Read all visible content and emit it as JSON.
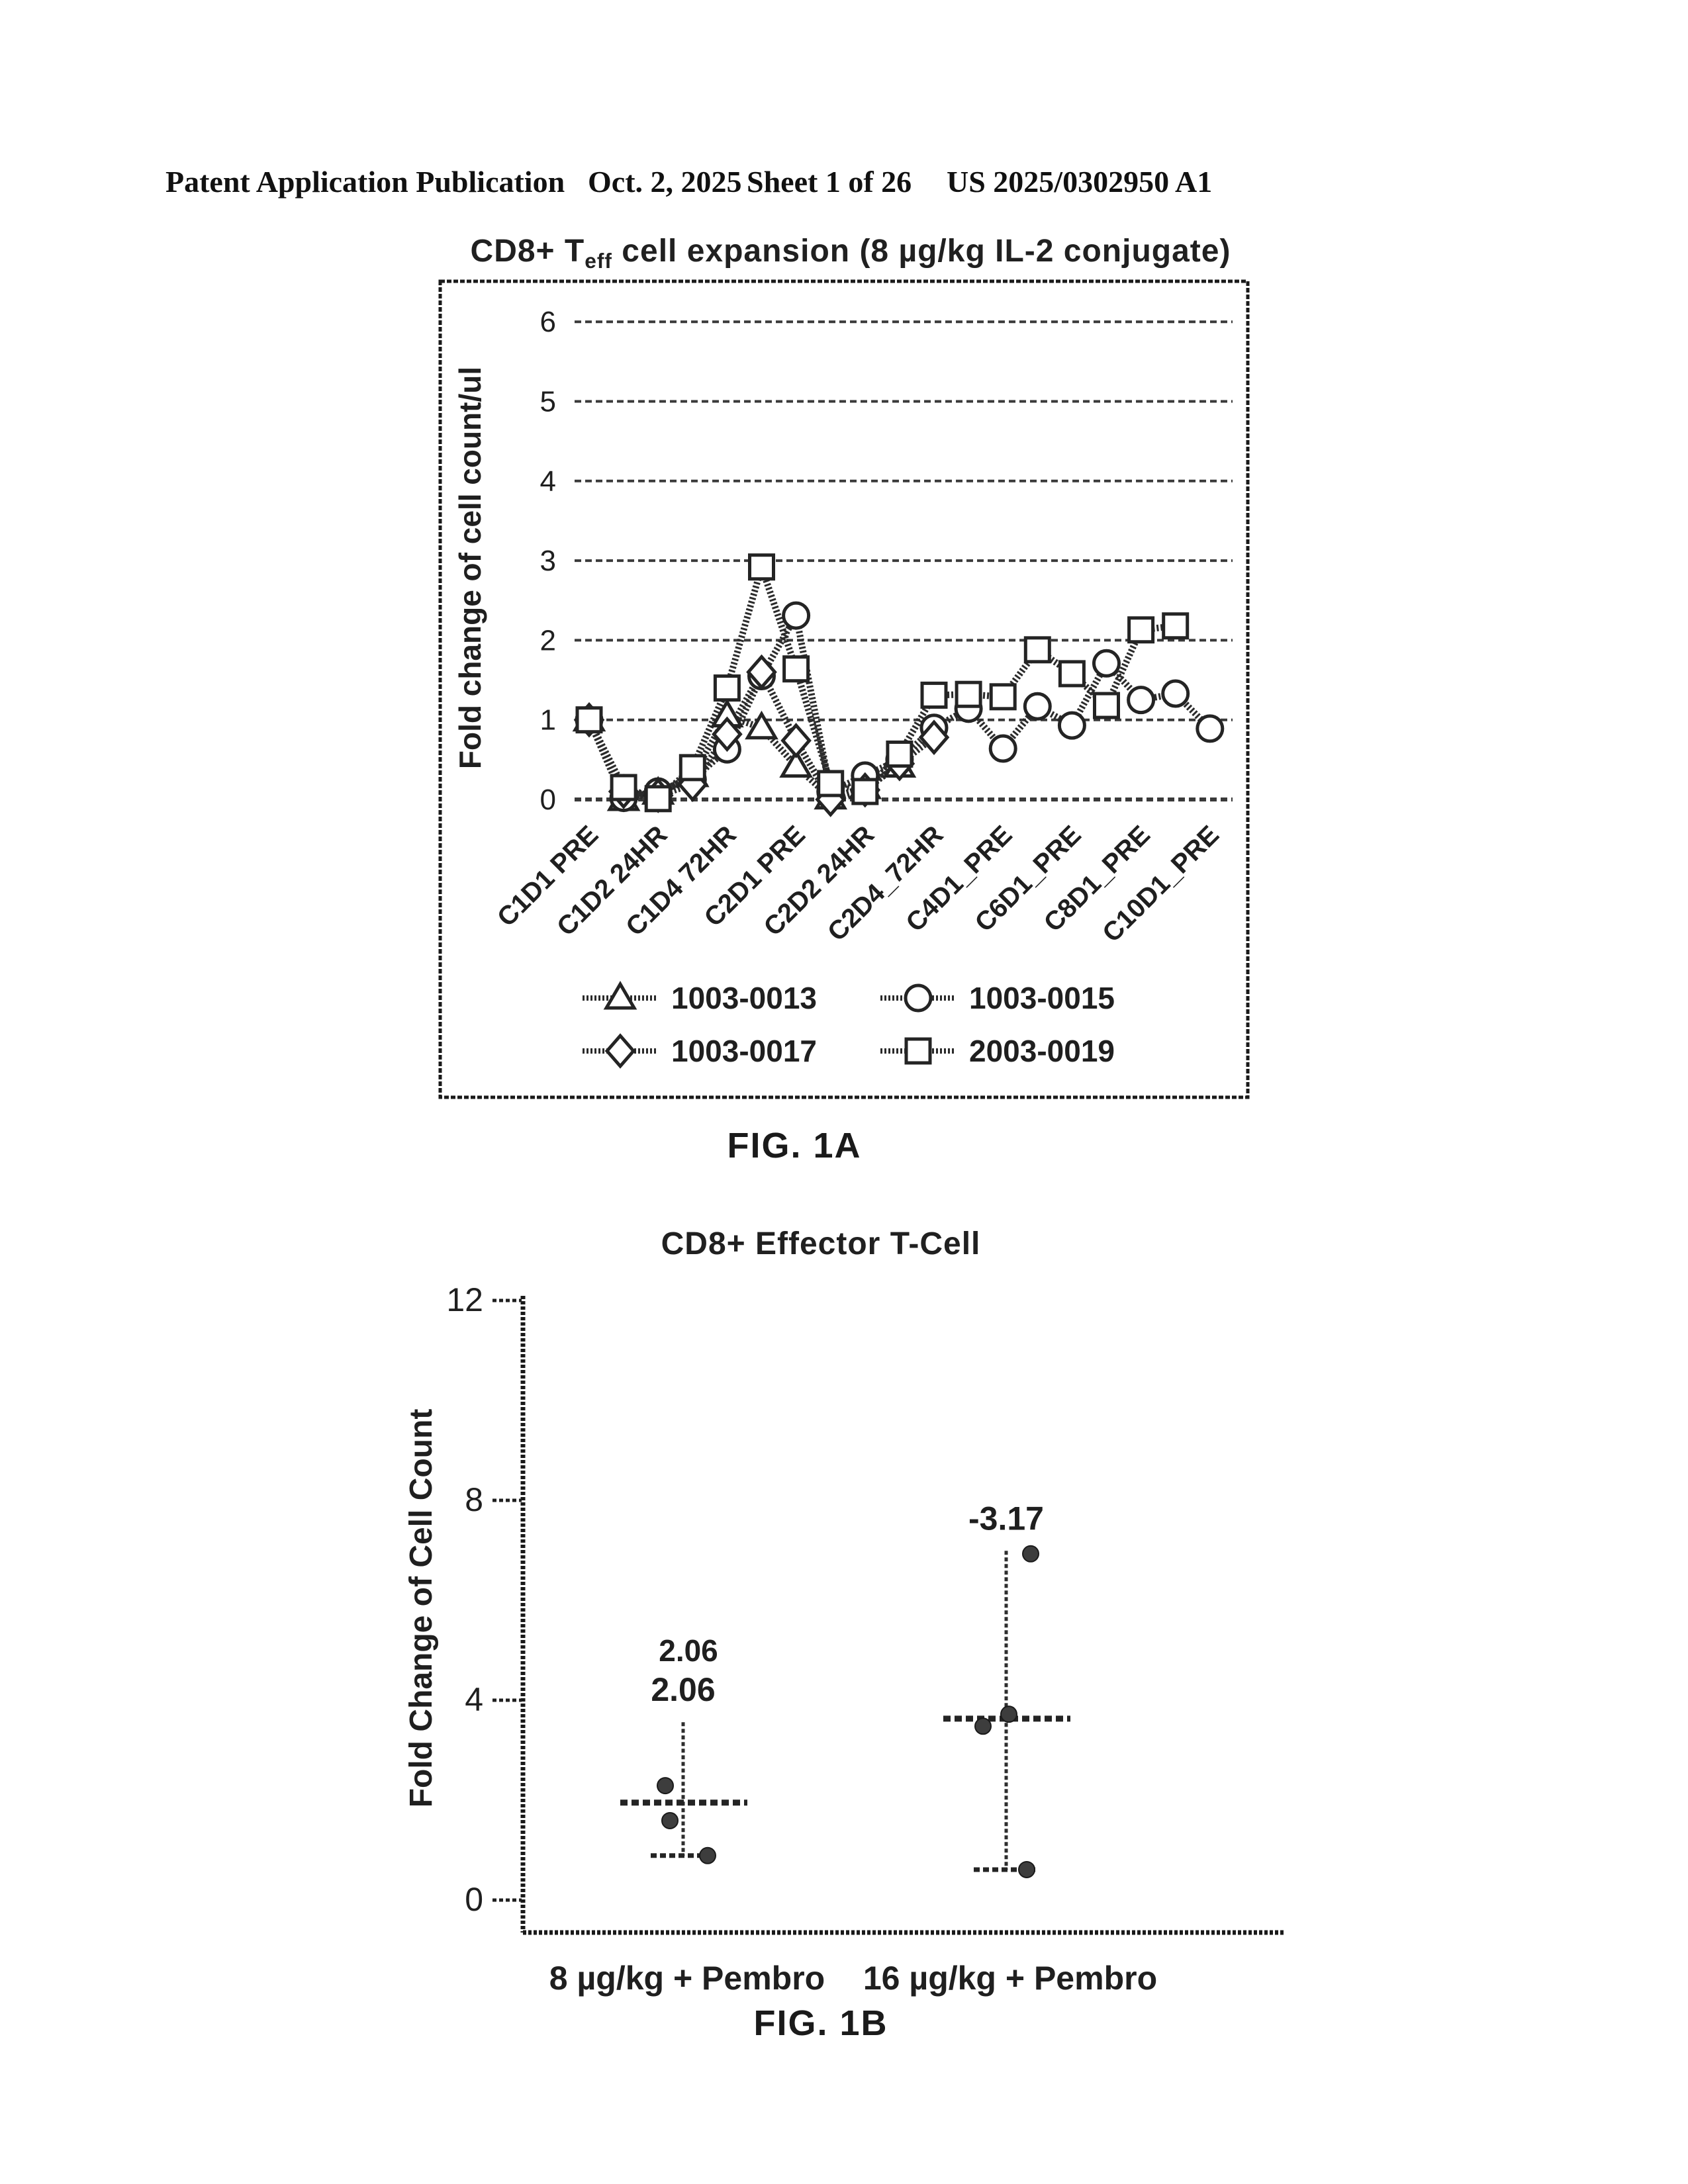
{
  "header": {
    "publication": "Patent Application Publication",
    "date": "Oct. 2, 2025",
    "sheet": "Sheet 1 of 26",
    "patent_number": "US 2025/0302950 A1"
  },
  "fig1a_caption": "FIG. 1A",
  "fig1b_caption": "FIG. 1B",
  "chart_data": [
    {
      "id": "fig1a",
      "type": "line",
      "title": "CD8+ Teff cell expansion (8 µg/kg IL-2 conjugate)",
      "title_parts": {
        "pre": "CD8+ T",
        "sub": "eff",
        "post": " cell expansion (8 µg/kg IL-2 conjugate)"
      },
      "ylabel": "Fold change of cell count/ul",
      "ylim": [
        0,
        6
      ],
      "y_ticks": [
        6,
        5,
        4,
        3,
        2,
        1,
        0
      ],
      "grid": true,
      "legend_position": "bottom",
      "x_tick_labels": [
        "C1D1 PRE",
        "C1D2 24HR",
        "C1D4 72HR",
        "C2D1 PRE",
        "C2D2 24HR",
        "C2D4_72HR",
        "C4D1_PRE",
        "C6D1_PRE",
        "C8D1_PRE",
        "C10D1_PRE"
      ],
      "x_slots": 19,
      "labels_every": 2,
      "series": [
        {
          "name": "1003-0013",
          "marker": "triangle",
          "points": [
            [
              0,
              1.0
            ],
            [
              1,
              0.0
            ],
            [
              2,
              0.08
            ],
            [
              3,
              0.3
            ],
            [
              4,
              1.05
            ],
            [
              5,
              0.9
            ],
            [
              6,
              0.42
            ],
            [
              7,
              0.02
            ],
            [
              8,
              0.15
            ],
            [
              9,
              0.42
            ]
          ]
        },
        {
          "name": "1003-0015",
          "marker": "circle",
          "points": [
            [
              0,
              1.0
            ],
            [
              1,
              0.02
            ],
            [
              2,
              0.1
            ],
            [
              3,
              0.25
            ],
            [
              4,
              0.63
            ],
            [
              5,
              1.55
            ],
            [
              6,
              2.31
            ],
            [
              7,
              0.1
            ],
            [
              8,
              0.3
            ],
            [
              9,
              0.5
            ],
            [
              10,
              0.9
            ],
            [
              11,
              1.14
            ],
            [
              12,
              0.64
            ],
            [
              13,
              1.17
            ],
            [
              14,
              0.93
            ],
            [
              15,
              1.71
            ],
            [
              16,
              1.25
            ],
            [
              17,
              1.33
            ],
            [
              18,
              0.89
            ]
          ]
        },
        {
          "name": "1003-0017",
          "marker": "diamond",
          "points": [
            [
              0,
              1.0
            ],
            [
              1,
              0.1
            ],
            [
              2,
              0.05
            ],
            [
              3,
              0.19
            ],
            [
              4,
              0.82
            ],
            [
              5,
              1.6
            ],
            [
              6,
              0.74
            ],
            [
              7,
              0.0
            ],
            [
              8,
              0.12
            ],
            [
              9,
              0.45
            ],
            [
              10,
              0.78
            ]
          ]
        },
        {
          "name": "2003-0019",
          "marker": "square",
          "points": [
            [
              0,
              1.0
            ],
            [
              1,
              0.15
            ],
            [
              2,
              0.01
            ],
            [
              3,
              0.4
            ],
            [
              4,
              1.4
            ],
            [
              5,
              2.92
            ],
            [
              6,
              1.64
            ],
            [
              7,
              0.2
            ],
            [
              8,
              0.1
            ],
            [
              9,
              0.57
            ],
            [
              10,
              1.31
            ],
            [
              11,
              1.32
            ],
            [
              12,
              1.29
            ],
            [
              13,
              1.88
            ],
            [
              14,
              1.58
            ],
            [
              15,
              1.18
            ],
            [
              16,
              2.13
            ],
            [
              17,
              2.18
            ]
          ]
        }
      ]
    },
    {
      "id": "fig1b",
      "type": "scatter",
      "title": "CD8+ Effector T-Cell",
      "ylabel": "Fold Change of Cell Count",
      "ylim": [
        0,
        12
      ],
      "y_ticks": [
        12,
        8,
        4,
        0
      ],
      "grid": false,
      "groups": [
        {
          "label": "8 µg/kg + Pembro",
          "annotation": "2.06",
          "annotation_ghost": "2.06",
          "mean": 1.95,
          "whisker_top": 3.56,
          "whisker_bottom": 0.89,
          "points": [
            [
              -27,
              2.29
            ],
            [
              -20,
              1.59
            ],
            [
              37,
              0.89
            ]
          ]
        },
        {
          "label": "16 µg/kg + Pembro",
          "annotation": "-3.17",
          "mean": 3.63,
          "whisker_top": 6.99,
          "whisker_bottom": 0.61,
          "points": [
            [
              37,
              6.93
            ],
            [
              -35,
              3.48
            ],
            [
              4,
              3.72
            ],
            [
              31,
              0.61
            ]
          ]
        }
      ]
    }
  ]
}
